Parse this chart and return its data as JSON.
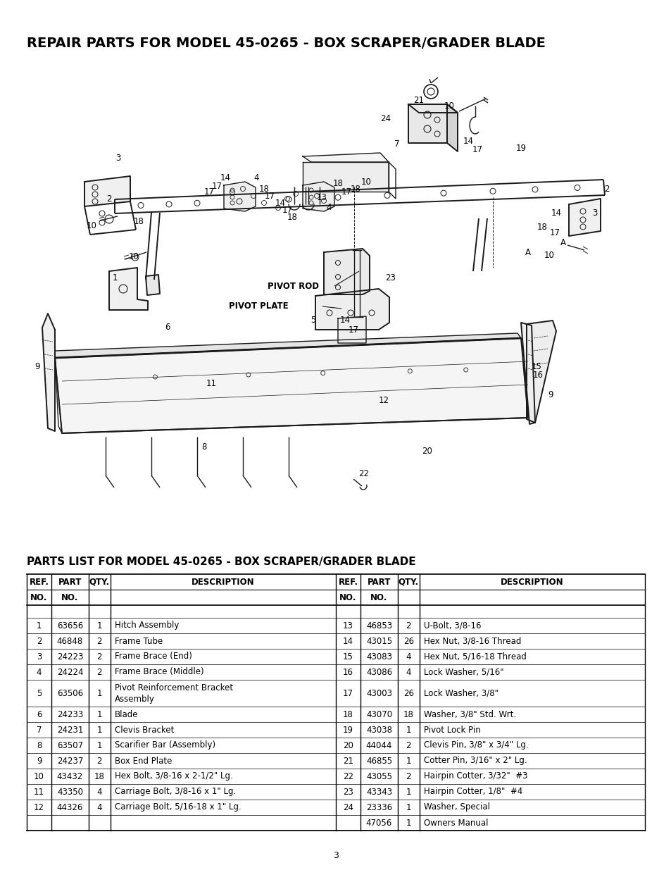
{
  "title": "REPAIR PARTS FOR MODEL 45-0265 - BOX SCRAPER/GRADER BLADE",
  "parts_list_title": "PARTS LIST FOR MODEL 45-0265 - BOX SCRAPER/GRADER BLADE",
  "page_number": "3",
  "background_color": "#ffffff",
  "text_color": "#000000",
  "parts_left": [
    [
      "1",
      "63656",
      "1",
      "Hitch Assembly"
    ],
    [
      "2",
      "46848",
      "2",
      "Frame Tube"
    ],
    [
      "3",
      "24223",
      "2",
      "Frame Brace (End)"
    ],
    [
      "4",
      "24224",
      "2",
      "Frame Brace (Middle)"
    ],
    [
      "5",
      "63506",
      "1",
      "Pivot Reinforcement Bracket\nAssembly"
    ],
    [
      "6",
      "24233",
      "1",
      "Blade"
    ],
    [
      "7",
      "24231",
      "1",
      "Clevis Bracket"
    ],
    [
      "8",
      "63507",
      "1",
      "Scarifier Bar (Assembly)"
    ],
    [
      "9",
      "24237",
      "2",
      "Box End Plate"
    ],
    [
      "10",
      "43432",
      "18",
      "Hex Bolt, 3/8-16 x 2-1/2\" Lg."
    ],
    [
      "11",
      "43350",
      "4",
      "Carriage Bolt, 3/8-16 x 1\" Lg."
    ],
    [
      "12",
      "44326",
      "4",
      "Carriage Bolt, 5/16-18 x 1\" Lg."
    ]
  ],
  "parts_right": [
    [
      "13",
      "46853",
      "2",
      "U-Bolt, 3/8-16"
    ],
    [
      "14",
      "43015",
      "26",
      "Hex Nut, 3/8-16 Thread"
    ],
    [
      "15",
      "43083",
      "4",
      "Hex Nut, 5/16-18 Thread"
    ],
    [
      "16",
      "43086",
      "4",
      "Lock Washer, 5/16\""
    ],
    [
      "17",
      "43003",
      "26",
      "Lock Washer, 3/8\""
    ],
    [
      "18",
      "43070",
      "18",
      "Washer, 3/8\" Std. Wrt."
    ],
    [
      "19",
      "43038",
      "1",
      "Pivot Lock Pin"
    ],
    [
      "20",
      "44044",
      "2",
      "Clevis Pin, 3/8\" x 3/4\" Lg."
    ],
    [
      "21",
      "46855",
      "1",
      "Cotter Pin, 3/16\" x 2\" Lg."
    ],
    [
      "22",
      "43055",
      "2",
      "Hairpin Cotter, 3/32\"  #3"
    ],
    [
      "23",
      "43343",
      "1",
      "Hairpin Cotter, 1/8\"  #4"
    ],
    [
      "24",
      "23336",
      "1",
      "Washer, Special"
    ],
    [
      "",
      "47056",
      "1",
      "Owners Manual"
    ]
  ]
}
